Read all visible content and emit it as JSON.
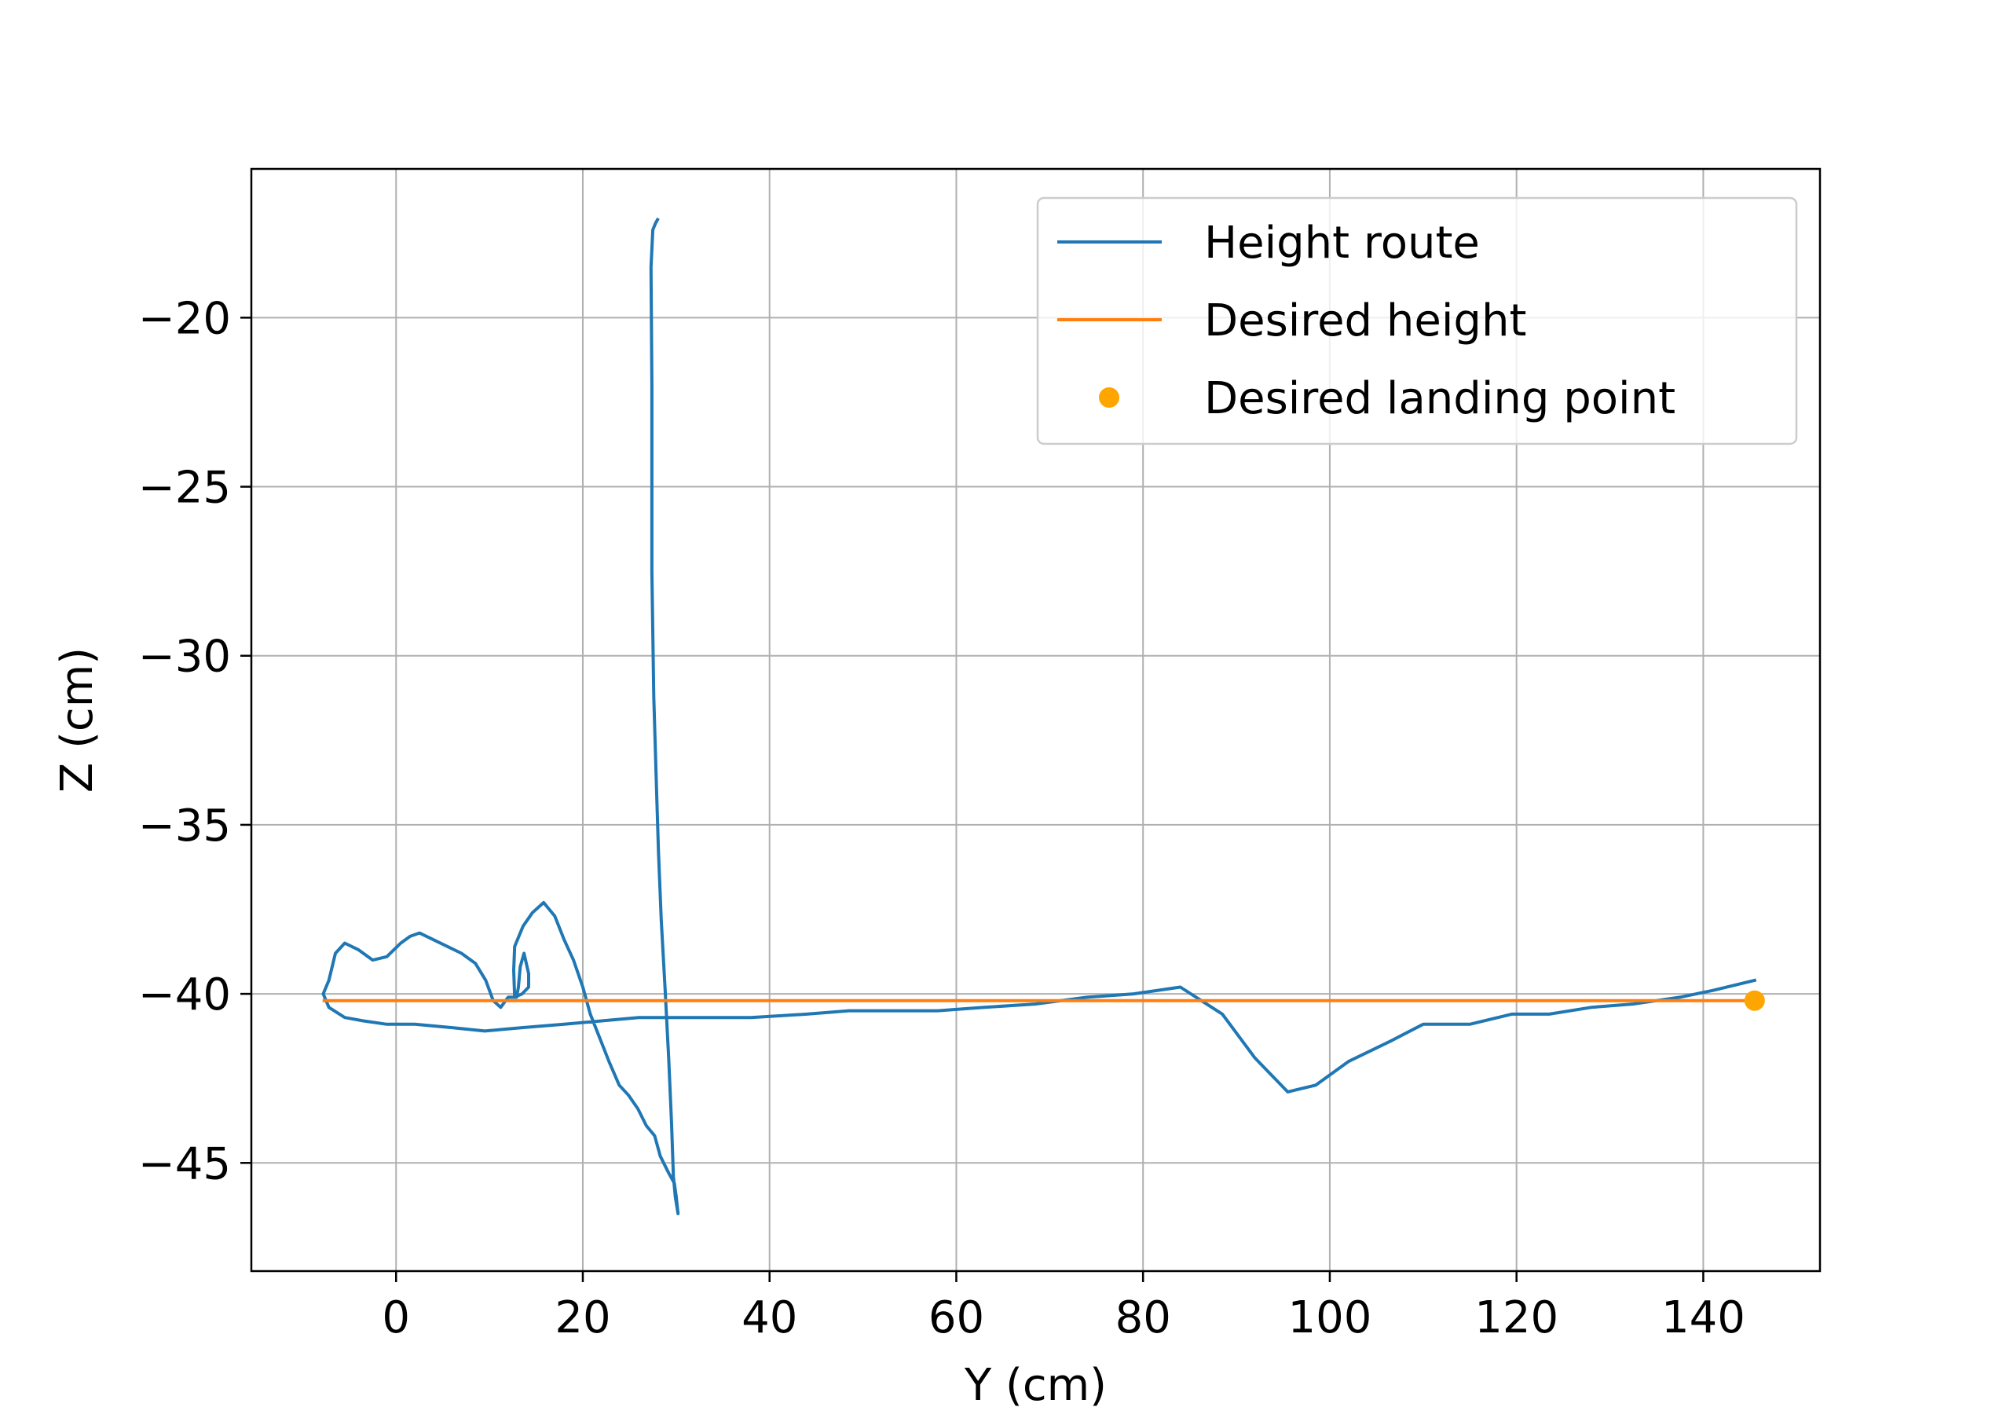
{
  "chart_data": {
    "type": "line",
    "title": "",
    "xlabel": "Y (cm)",
    "ylabel": "Z (cm)",
    "xlim": [
      -15.5,
      152.5
    ],
    "ylim": [
      -48.2,
      -15.6
    ],
    "xticks": [
      0,
      20,
      40,
      60,
      80,
      100,
      120,
      140
    ],
    "yticks": [
      -20,
      -25,
      -30,
      -35,
      -40,
      -45
    ],
    "xtick_labels": [
      "0",
      "20",
      "40",
      "60",
      "80",
      "100",
      "120",
      "140"
    ],
    "ytick_labels": [
      "−20",
      "−25",
      "−30",
      "−35",
      "−40",
      "−45"
    ],
    "grid": true,
    "legend_position": "upper right",
    "series": [
      {
        "name": "Height route",
        "kind": "line",
        "color": "#1f77b4",
        "points": [
          [
            28.0,
            -17.1
          ],
          [
            27.8,
            -17.2
          ],
          [
            27.5,
            -17.4
          ],
          [
            27.3,
            -18.5
          ],
          [
            27.4,
            -22.0
          ],
          [
            27.4,
            -27.5
          ],
          [
            27.6,
            -31.2
          ],
          [
            27.9,
            -34.0
          ],
          [
            28.1,
            -35.8
          ],
          [
            28.4,
            -37.8
          ],
          [
            28.8,
            -39.8
          ],
          [
            29.2,
            -41.9
          ],
          [
            29.5,
            -43.8
          ],
          [
            29.7,
            -45.4
          ],
          [
            29.9,
            -46.0
          ],
          [
            30.2,
            -46.5
          ],
          [
            30.0,
            -46.0
          ],
          [
            29.8,
            -45.6
          ],
          [
            29.2,
            -45.3
          ],
          [
            28.3,
            -44.8
          ],
          [
            27.7,
            -44.2
          ],
          [
            26.8,
            -43.9
          ],
          [
            25.9,
            -43.4
          ],
          [
            24.9,
            -43.0
          ],
          [
            23.9,
            -42.7
          ],
          [
            22.8,
            -42.0
          ],
          [
            21.8,
            -41.3
          ],
          [
            20.8,
            -40.6
          ],
          [
            20.0,
            -39.8
          ],
          [
            19.0,
            -39.0
          ],
          [
            18.0,
            -38.4
          ],
          [
            17.0,
            -37.7
          ],
          [
            15.8,
            -37.3
          ],
          [
            14.6,
            -37.6
          ],
          [
            13.6,
            -38.0
          ],
          [
            12.7,
            -38.6
          ],
          [
            12.6,
            -39.3
          ],
          [
            12.7,
            -40.1
          ],
          [
            13.5,
            -40.0
          ],
          [
            14.2,
            -39.8
          ],
          [
            14.2,
            -39.4
          ],
          [
            13.7,
            -38.8
          ],
          [
            13.3,
            -39.2
          ],
          [
            13.1,
            -39.8
          ],
          [
            12.9,
            -40.1
          ],
          [
            12.0,
            -40.1
          ],
          [
            11.2,
            -40.4
          ],
          [
            10.4,
            -40.2
          ],
          [
            9.6,
            -39.6
          ],
          [
            8.5,
            -39.1
          ],
          [
            7.0,
            -38.8
          ],
          [
            5.5,
            -38.6
          ],
          [
            4.0,
            -38.4
          ],
          [
            2.5,
            -38.2
          ],
          [
            1.5,
            -38.3
          ],
          [
            0.5,
            -38.5
          ],
          [
            -1.0,
            -38.9
          ],
          [
            -2.5,
            -39.0
          ],
          [
            -4.0,
            -38.7
          ],
          [
            -5.5,
            -38.5
          ],
          [
            -6.5,
            -38.8
          ],
          [
            -7.2,
            -39.6
          ],
          [
            -7.8,
            -40.0
          ],
          [
            -7.2,
            -40.4
          ],
          [
            -5.5,
            -40.7
          ],
          [
            -3.5,
            -40.8
          ],
          [
            -1.0,
            -40.9
          ],
          [
            2.0,
            -40.9
          ],
          [
            6.0,
            -41.0
          ],
          [
            9.5,
            -41.1
          ],
          [
            13.5,
            -41.0
          ],
          [
            18.0,
            -40.9
          ],
          [
            22.0,
            -40.8
          ],
          [
            26.0,
            -40.7
          ],
          [
            32.0,
            -40.7
          ],
          [
            38.0,
            -40.7
          ],
          [
            44.0,
            -40.6
          ],
          [
            48.5,
            -40.5
          ],
          [
            53.0,
            -40.5
          ],
          [
            58.0,
            -40.5
          ],
          [
            63.0,
            -40.4
          ],
          [
            68.5,
            -40.3
          ],
          [
            74.0,
            -40.1
          ],
          [
            79.0,
            -40.0
          ],
          [
            84.0,
            -39.8
          ],
          [
            88.5,
            -40.6
          ],
          [
            92.0,
            -41.9
          ],
          [
            95.5,
            -42.9
          ],
          [
            98.5,
            -42.7
          ],
          [
            102.0,
            -42.0
          ],
          [
            106.5,
            -41.4
          ],
          [
            110.0,
            -40.9
          ],
          [
            115.0,
            -40.9
          ],
          [
            119.5,
            -40.6
          ],
          [
            123.5,
            -40.6
          ],
          [
            128.0,
            -40.4
          ],
          [
            132.5,
            -40.3
          ],
          [
            137.5,
            -40.1
          ],
          [
            141.0,
            -39.9
          ],
          [
            145.5,
            -39.6
          ]
        ]
      },
      {
        "name": "Desired height",
        "kind": "line",
        "color": "#ff7f0e",
        "points": [
          [
            -7.7,
            -40.2
          ],
          [
            145.5,
            -40.2
          ]
        ]
      },
      {
        "name": "Desired landing point",
        "kind": "scatter",
        "color": "#ffa500",
        "points": [
          [
            145.5,
            -40.2
          ]
        ]
      }
    ]
  }
}
